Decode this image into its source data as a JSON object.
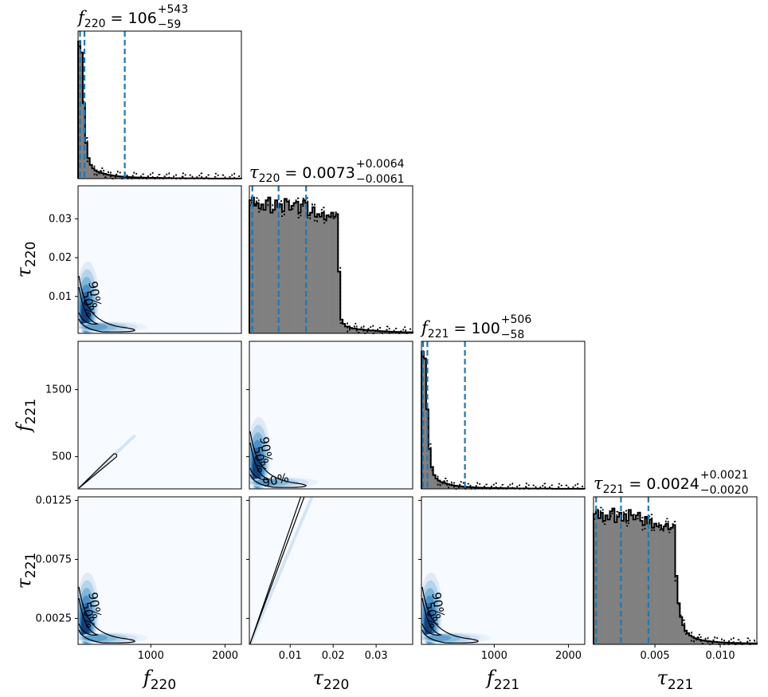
{
  "chart_data": {
    "type": "corner",
    "parameters": [
      "f220",
      "tau220",
      "f221",
      "tau221"
    ],
    "axis_labels": {
      "f220": {
        "base": "f",
        "sub": "220"
      },
      "tau220": {
        "base": "τ",
        "sub": "220"
      },
      "f221": {
        "base": "f",
        "sub": "221"
      },
      "tau221": {
        "base": "τ",
        "sub": "221"
      }
    },
    "ranges": {
      "f220": [
        20,
        2220
      ],
      "tau220": [
        0.0005,
        0.0385
      ],
      "f221": [
        20,
        2220
      ],
      "tau221": [
        0.0003,
        0.0128
      ]
    },
    "tick_labels": {
      "f220_x": [
        "1000",
        "2000"
      ],
      "tau220_x": [
        "0.01",
        "0.02",
        "0.03"
      ],
      "f221_x": [
        "1000",
        "2000"
      ],
      "tau221_x": [
        "0.005",
        "0.010"
      ],
      "tau220_y": [
        "0.01",
        "0.02",
        "0.03"
      ],
      "f221_y": [
        "500",
        "1500"
      ],
      "tau221_y": [
        "0.0025",
        "0.0075",
        "0.0125"
      ]
    },
    "ticks": {
      "f220_x": [
        1000,
        2000
      ],
      "tau220_x": [
        0.01,
        0.02,
        0.03
      ],
      "f221_x": [
        1000,
        2000
      ],
      "tau221_x": [
        0.005,
        0.01
      ],
      "tau220_y": [
        0.01,
        0.02,
        0.03
      ],
      "f221_y": [
        500,
        1500
      ],
      "tau221_y": [
        0.0025,
        0.0075,
        0.0125
      ]
    },
    "marginals": [
      {
        "param": "f220",
        "title": {
          "base": "f",
          "sub": "220",
          "median": "106",
          "plus": "+543",
          "minus": "−59"
        },
        "quantiles": [
          47,
          106,
          649
        ],
        "peak": 0.93,
        "hist": [
          1.0,
          0.92,
          0.55,
          0.26,
          0.15,
          0.1,
          0.075,
          0.06,
          0.05,
          0.045,
          0.04,
          0.035,
          0.03,
          0.027,
          0.024,
          0.021,
          0.019,
          0.017,
          0.015,
          0.014,
          0.013,
          0.012,
          0.011,
          0.01,
          0.009,
          0.009,
          0.008,
          0.008,
          0.007,
          0.007,
          0.006,
          0.006,
          0.006,
          0.005,
          0.005,
          0.005,
          0.004,
          0.004,
          0.004,
          0.004,
          0.003,
          0.003,
          0.003,
          0.003,
          0.003,
          0.003,
          0.002,
          0.002,
          0.002,
          0.002,
          0.002,
          0.002,
          0.002,
          0.002,
          0.002,
          0.002,
          0.001,
          0.001,
          0.001,
          0.001,
          0.001,
          0.001,
          0.001,
          0.001,
          0.001,
          0.001,
          0.001,
          0.001,
          0.001,
          0.001
        ]
      },
      {
        "param": "tau220",
        "title": {
          "base": "τ",
          "sub": "220",
          "median": "0.0073",
          "plus": "+0.0064",
          "minus": "−0.0061"
        },
        "quantiles": [
          0.0012,
          0.0073,
          0.0137
        ],
        "peak": 0.93,
        "hist": [
          0.97,
          0.99,
          0.93,
          0.95,
          0.91,
          0.94,
          0.9,
          0.97,
          0.99,
          0.88,
          0.9,
          0.97,
          0.92,
          0.94,
          0.89,
          0.98,
          0.96,
          0.9,
          0.93,
          0.95,
          0.96,
          0.88,
          0.94,
          0.97,
          0.95,
          0.86,
          0.88,
          0.92,
          0.85,
          0.87,
          0.85,
          0.88,
          0.83,
          0.86,
          0.85,
          0.88,
          0.85,
          0.87,
          0.45,
          0.1,
          0.07,
          0.05,
          0.05,
          0.04,
          0.035,
          0.035,
          0.03,
          0.03,
          0.028,
          0.025,
          0.025,
          0.022,
          0.02,
          0.02,
          0.018,
          0.017,
          0.016,
          0.015,
          0.014,
          0.013,
          0.012,
          0.011,
          0.011,
          0.01,
          0.01,
          0.009,
          0.009,
          0.008,
          0.008,
          0.008
        ]
      },
      {
        "param": "f221",
        "title": {
          "base": "f",
          "sub": "221",
          "median": "100",
          "plus": "+506",
          "minus": "−58"
        },
        "quantiles": [
          42,
          100,
          606
        ],
        "peak": 0.93,
        "hist": [
          1.0,
          0.95,
          0.58,
          0.29,
          0.16,
          0.1,
          0.075,
          0.06,
          0.05,
          0.045,
          0.04,
          0.034,
          0.03,
          0.026,
          0.023,
          0.021,
          0.019,
          0.017,
          0.015,
          0.014,
          0.013,
          0.012,
          0.011,
          0.01,
          0.009,
          0.009,
          0.008,
          0.008,
          0.007,
          0.007,
          0.006,
          0.006,
          0.006,
          0.005,
          0.005,
          0.005,
          0.004,
          0.004,
          0.004,
          0.004,
          0.003,
          0.003,
          0.003,
          0.003,
          0.003,
          0.003,
          0.002,
          0.002,
          0.002,
          0.002,
          0.002,
          0.002,
          0.002,
          0.002,
          0.002,
          0.002,
          0.001,
          0.001,
          0.001,
          0.001,
          0.001,
          0.001,
          0.001,
          0.001,
          0.001,
          0.001,
          0.001,
          0.001,
          0.001,
          0.001
        ]
      },
      {
        "param": "tau221",
        "title": {
          "base": "τ",
          "sub": "221",
          "median": "0.0024",
          "plus": "+0.0021",
          "minus": "−0.0020"
        },
        "quantiles": [
          0.0005,
          0.0024,
          0.0045
        ],
        "peak": 0.93,
        "hist": [
          0.95,
          0.98,
          0.92,
          0.96,
          0.9,
          0.94,
          0.91,
          0.97,
          0.99,
          0.89,
          0.93,
          0.96,
          0.9,
          0.95,
          0.9,
          0.98,
          0.94,
          0.91,
          0.94,
          0.96,
          0.9,
          0.87,
          0.93,
          0.88,
          0.91,
          0.85,
          0.88,
          0.86,
          0.87,
          0.84,
          0.86,
          0.88,
          0.84,
          0.85,
          0.87,
          0.5,
          0.3,
          0.2,
          0.14,
          0.1,
          0.08,
          0.065,
          0.055,
          0.045,
          0.04,
          0.035,
          0.03,
          0.028,
          0.025,
          0.023,
          0.02,
          0.019,
          0.018,
          0.016,
          0.015,
          0.014,
          0.013,
          0.012,
          0.011,
          0.011,
          0.01,
          0.01,
          0.009,
          0.009,
          0.008,
          0.008,
          0.008,
          0.007,
          0.007,
          0.007
        ]
      }
    ],
    "joint_panels": [
      {
        "x": "f220",
        "y": "tau220",
        "shape": "hyperbola",
        "k": 0.35,
        "labels": [
          "90%",
          "50%"
        ]
      },
      {
        "x": "f220",
        "y": "f221",
        "shape": "diagonal",
        "ridge_end": 520,
        "labels": []
      },
      {
        "x": "tau220",
        "y": "f221",
        "shape": "hyperbola",
        "k": 2.8,
        "labels": [
          "90%",
          "50%"
        ]
      },
      {
        "x": "f220",
        "y": "tau221",
        "shape": "hyperbola",
        "k": 0.12,
        "labels": [
          "90%",
          "50%"
        ]
      },
      {
        "x": "tau220",
        "y": "tau221",
        "shape": "diagonal",
        "ridge_end": 0.0155,
        "labels": []
      },
      {
        "x": "f221",
        "y": "tau221",
        "shape": "hyperbola",
        "k": 0.12,
        "labels": [
          "90%",
          "50%"
        ]
      }
    ],
    "colors": {
      "hist_fill": "#808080",
      "quantile_line": "#1f77b4",
      "density_low": "#f7fbff",
      "density_high": "#08306b",
      "contour": "#000000"
    }
  }
}
